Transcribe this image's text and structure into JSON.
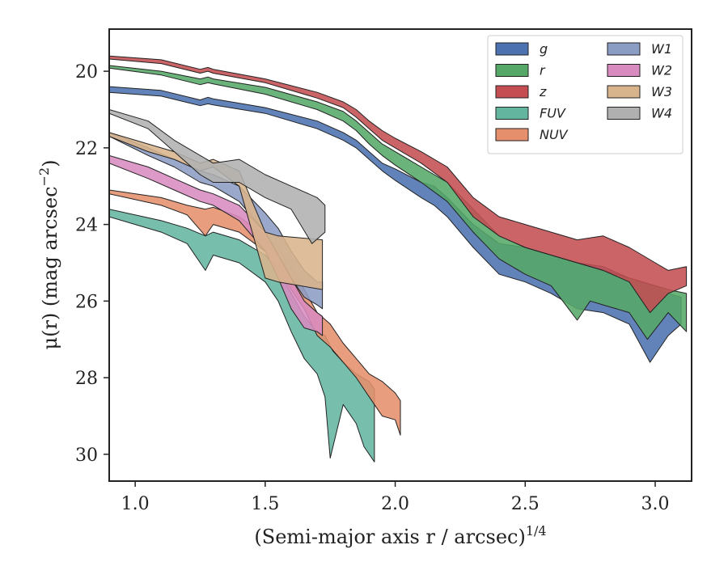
{
  "chart_data": {
    "type": "area",
    "xlabel": "(Semi-major axis r / arcsec)",
    "xlabel_superscript": "1/4",
    "ylabel": "μ(r) (mag arcsec",
    "ylabel_superscript": "−2",
    "ylabel_tail": ")",
    "xlim": [
      0.9,
      3.14
    ],
    "ylim": [
      30.7,
      18.9
    ],
    "y_inverted": true,
    "x_ticks": [
      1.0,
      1.5,
      2.0,
      2.5,
      3.0
    ],
    "x_tick_labels": [
      "1.0",
      "1.5",
      "2.0",
      "2.5",
      "3.0"
    ],
    "y_ticks": [
      20,
      22,
      24,
      26,
      28,
      30
    ],
    "y_tick_labels": [
      "20",
      "22",
      "24",
      "26",
      "28",
      "30"
    ],
    "grid": false,
    "legend_position": "top-right",
    "legend_columns": 2,
    "series": [
      {
        "name": "g",
        "color": "#4c72b0",
        "upper": [
          [
            0.9,
            20.4
          ],
          [
            1.1,
            20.5
          ],
          [
            1.25,
            20.75
          ],
          [
            1.28,
            20.68
          ],
          [
            1.3,
            20.72
          ],
          [
            1.5,
            20.95
          ],
          [
            1.7,
            21.3
          ],
          [
            1.8,
            21.6
          ],
          [
            1.85,
            21.8
          ],
          [
            1.9,
            22.1
          ],
          [
            1.95,
            22.4
          ],
          [
            2.0,
            22.55
          ],
          [
            2.1,
            22.9
          ],
          [
            2.15,
            23.0
          ],
          [
            2.2,
            23.3
          ],
          [
            2.3,
            24.0
          ],
          [
            2.4,
            24.5
          ],
          [
            2.5,
            24.6
          ],
          [
            2.6,
            24.8
          ],
          [
            2.7,
            25.0
          ],
          [
            2.8,
            25.1
          ],
          [
            2.9,
            25.4
          ],
          [
            3.0,
            25.6
          ],
          [
            3.05,
            25.8
          ],
          [
            3.1,
            25.9
          ]
        ],
        "lower": [
          [
            0.9,
            20.55
          ],
          [
            1.1,
            20.65
          ],
          [
            1.25,
            20.9
          ],
          [
            1.28,
            20.85
          ],
          [
            1.3,
            20.88
          ],
          [
            1.5,
            21.1
          ],
          [
            1.7,
            21.5
          ],
          [
            1.8,
            21.8
          ],
          [
            1.85,
            22.0
          ],
          [
            1.9,
            22.3
          ],
          [
            1.95,
            22.6
          ],
          [
            2.0,
            22.85
          ],
          [
            2.1,
            23.3
          ],
          [
            2.15,
            23.5
          ],
          [
            2.2,
            23.8
          ],
          [
            2.3,
            24.6
          ],
          [
            2.4,
            25.3
          ],
          [
            2.5,
            25.5
          ],
          [
            2.6,
            25.8
          ],
          [
            2.65,
            26.0
          ],
          [
            2.7,
            26.2
          ],
          [
            2.8,
            26.3
          ],
          [
            2.9,
            26.6
          ],
          [
            2.98,
            27.6
          ],
          [
            3.05,
            26.9
          ],
          [
            3.1,
            26.6
          ]
        ]
      },
      {
        "name": "r",
        "color": "#55a868",
        "upper": [
          [
            0.9,
            19.85
          ],
          [
            1.1,
            20.0
          ],
          [
            1.25,
            20.2
          ],
          [
            1.28,
            20.15
          ],
          [
            1.3,
            20.2
          ],
          [
            1.5,
            20.42
          ],
          [
            1.7,
            20.8
          ],
          [
            1.8,
            21.05
          ],
          [
            1.85,
            21.3
          ],
          [
            1.9,
            21.6
          ],
          [
            1.95,
            21.9
          ],
          [
            2.0,
            22.1
          ],
          [
            2.1,
            22.5
          ],
          [
            2.2,
            22.9
          ],
          [
            2.3,
            23.6
          ],
          [
            2.4,
            24.3
          ],
          [
            2.5,
            24.6
          ],
          [
            2.6,
            24.8
          ],
          [
            2.7,
            25.0
          ],
          [
            2.8,
            25.2
          ],
          [
            2.9,
            25.4
          ],
          [
            3.0,
            25.6
          ],
          [
            3.05,
            25.7
          ],
          [
            3.12,
            25.8
          ]
        ],
        "lower": [
          [
            0.9,
            19.92
          ],
          [
            1.1,
            20.1
          ],
          [
            1.25,
            20.35
          ],
          [
            1.28,
            20.3
          ],
          [
            1.3,
            20.33
          ],
          [
            1.5,
            20.6
          ],
          [
            1.7,
            21.0
          ],
          [
            1.8,
            21.3
          ],
          [
            1.85,
            21.55
          ],
          [
            1.9,
            21.9
          ],
          [
            1.95,
            22.2
          ],
          [
            2.0,
            22.45
          ],
          [
            2.1,
            22.9
          ],
          [
            2.2,
            23.4
          ],
          [
            2.3,
            24.2
          ],
          [
            2.4,
            24.9
          ],
          [
            2.5,
            25.3
          ],
          [
            2.6,
            25.6
          ],
          [
            2.7,
            26.5
          ],
          [
            2.75,
            26.0
          ],
          [
            2.8,
            26.1
          ],
          [
            2.9,
            26.3
          ],
          [
            2.97,
            27.0
          ],
          [
            3.05,
            26.3
          ],
          [
            3.12,
            26.8
          ]
        ]
      },
      {
        "name": "z",
        "color": "#c44e52",
        "upper": [
          [
            0.9,
            19.6
          ],
          [
            1.1,
            19.7
          ],
          [
            1.25,
            19.95
          ],
          [
            1.28,
            19.9
          ],
          [
            1.3,
            19.95
          ],
          [
            1.5,
            20.2
          ],
          [
            1.7,
            20.55
          ],
          [
            1.8,
            20.8
          ],
          [
            1.85,
            21.0
          ],
          [
            1.9,
            21.3
          ],
          [
            1.95,
            21.55
          ],
          [
            2.0,
            21.75
          ],
          [
            2.1,
            22.1
          ],
          [
            2.2,
            22.5
          ],
          [
            2.3,
            23.3
          ],
          [
            2.4,
            23.8
          ],
          [
            2.5,
            24.0
          ],
          [
            2.6,
            24.2
          ],
          [
            2.7,
            24.4
          ],
          [
            2.8,
            24.3
          ],
          [
            2.9,
            24.6
          ],
          [
            3.0,
            25.0
          ],
          [
            3.05,
            25.2
          ],
          [
            3.12,
            25.1
          ]
        ],
        "lower": [
          [
            0.9,
            19.68
          ],
          [
            1.1,
            19.8
          ],
          [
            1.25,
            20.05
          ],
          [
            1.28,
            20.0
          ],
          [
            1.3,
            20.05
          ],
          [
            1.5,
            20.3
          ],
          [
            1.7,
            20.7
          ],
          [
            1.8,
            20.95
          ],
          [
            1.85,
            21.2
          ],
          [
            1.9,
            21.5
          ],
          [
            1.95,
            21.8
          ],
          [
            2.0,
            22.0
          ],
          [
            2.1,
            22.4
          ],
          [
            2.2,
            22.9
          ],
          [
            2.3,
            23.8
          ],
          [
            2.4,
            24.3
          ],
          [
            2.5,
            24.6
          ],
          [
            2.6,
            24.8
          ],
          [
            2.7,
            25.0
          ],
          [
            2.8,
            25.2
          ],
          [
            2.9,
            25.5
          ],
          [
            2.98,
            26.3
          ],
          [
            3.05,
            25.8
          ],
          [
            3.12,
            25.6
          ]
        ]
      },
      {
        "name": "FUV",
        "color": "#64b5a0",
        "upper": [
          [
            0.9,
            23.6
          ],
          [
            1.1,
            23.9
          ],
          [
            1.2,
            24.1
          ],
          [
            1.27,
            24.3
          ],
          [
            1.3,
            24.2
          ],
          [
            1.4,
            24.4
          ],
          [
            1.5,
            24.8
          ],
          [
            1.55,
            25.2
          ],
          [
            1.6,
            25.8
          ],
          [
            1.65,
            26.4
          ],
          [
            1.7,
            26.8
          ],
          [
            1.73,
            26.9
          ],
          [
            1.76,
            27.3
          ],
          [
            1.8,
            27.6
          ],
          [
            1.85,
            27.9
          ],
          [
            1.9,
            28.1
          ],
          [
            1.92,
            28.3
          ]
        ],
        "lower": [
          [
            0.9,
            23.8
          ],
          [
            1.1,
            24.2
          ],
          [
            1.2,
            24.5
          ],
          [
            1.27,
            25.2
          ],
          [
            1.3,
            24.8
          ],
          [
            1.4,
            25.0
          ],
          [
            1.5,
            25.5
          ],
          [
            1.55,
            26.0
          ],
          [
            1.6,
            26.8
          ],
          [
            1.65,
            27.5
          ],
          [
            1.7,
            27.9
          ],
          [
            1.73,
            28.5
          ],
          [
            1.75,
            30.1
          ],
          [
            1.8,
            28.7
          ],
          [
            1.85,
            29.2
          ],
          [
            1.88,
            29.8
          ],
          [
            1.92,
            30.2
          ]
        ]
      },
      {
        "name": "NUV",
        "color": "#e58f6c",
        "upper": [
          [
            0.9,
            23.1
          ],
          [
            1.1,
            23.3
          ],
          [
            1.2,
            23.5
          ],
          [
            1.27,
            23.6
          ],
          [
            1.3,
            23.55
          ],
          [
            1.4,
            23.8
          ],
          [
            1.5,
            24.3
          ],
          [
            1.55,
            24.6
          ],
          [
            1.6,
            25.1
          ],
          [
            1.65,
            25.7
          ],
          [
            1.7,
            26.3
          ],
          [
            1.75,
            26.6
          ],
          [
            1.8,
            27.1
          ],
          [
            1.85,
            27.5
          ],
          [
            1.9,
            27.9
          ],
          [
            1.95,
            28.1
          ],
          [
            2.0,
            28.4
          ],
          [
            2.02,
            28.6
          ]
        ],
        "lower": [
          [
            0.9,
            23.2
          ],
          [
            1.1,
            23.5
          ],
          [
            1.2,
            23.75
          ],
          [
            1.27,
            24.3
          ],
          [
            1.3,
            24.0
          ],
          [
            1.4,
            24.2
          ],
          [
            1.5,
            24.7
          ],
          [
            1.55,
            25.2
          ],
          [
            1.6,
            25.7
          ],
          [
            1.65,
            26.2
          ],
          [
            1.7,
            26.9
          ],
          [
            1.75,
            27.2
          ],
          [
            1.8,
            27.6
          ],
          [
            1.85,
            28.0
          ],
          [
            1.9,
            28.5
          ],
          [
            1.95,
            29.0
          ],
          [
            2.0,
            29.1
          ],
          [
            2.02,
            29.5
          ]
        ]
      },
      {
        "name": "W1",
        "color": "#8c9dc4",
        "upper": [
          [
            0.9,
            21.6
          ],
          [
            1.05,
            22.0
          ],
          [
            1.15,
            22.3
          ],
          [
            1.25,
            22.6
          ],
          [
            1.3,
            22.7
          ],
          [
            1.4,
            23.0
          ],
          [
            1.5,
            23.7
          ],
          [
            1.55,
            24.1
          ],
          [
            1.6,
            24.7
          ],
          [
            1.65,
            25.2
          ],
          [
            1.7,
            25.5
          ],
          [
            1.72,
            25.5
          ]
        ],
        "lower": [
          [
            0.9,
            21.7
          ],
          [
            1.05,
            22.2
          ],
          [
            1.15,
            22.5
          ],
          [
            1.25,
            22.9
          ],
          [
            1.3,
            23.0
          ],
          [
            1.4,
            23.4
          ],
          [
            1.5,
            24.2
          ],
          [
            1.55,
            24.8
          ],
          [
            1.6,
            25.4
          ],
          [
            1.65,
            25.9
          ],
          [
            1.7,
            26.1
          ],
          [
            1.72,
            26.2
          ]
        ]
      },
      {
        "name": "W2",
        "color": "#d88bbf",
        "upper": [
          [
            0.9,
            22.2
          ],
          [
            1.05,
            22.5
          ],
          [
            1.15,
            22.8
          ],
          [
            1.25,
            23.1
          ],
          [
            1.3,
            23.2
          ],
          [
            1.4,
            23.5
          ],
          [
            1.5,
            24.2
          ],
          [
            1.55,
            24.8
          ],
          [
            1.6,
            25.4
          ],
          [
            1.65,
            26.0
          ],
          [
            1.7,
            26.3
          ],
          [
            1.72,
            26.4
          ]
        ],
        "lower": [
          [
            0.9,
            22.4
          ],
          [
            1.05,
            22.8
          ],
          [
            1.15,
            23.1
          ],
          [
            1.25,
            23.4
          ],
          [
            1.3,
            23.5
          ],
          [
            1.4,
            23.9
          ],
          [
            1.5,
            24.7
          ],
          [
            1.55,
            25.4
          ],
          [
            1.6,
            26.2
          ],
          [
            1.65,
            26.7
          ],
          [
            1.7,
            26.8
          ],
          [
            1.72,
            26.9
          ]
        ]
      },
      {
        "name": "W3",
        "color": "#d8b48c",
        "upper": [
          [
            0.9,
            21.6
          ],
          [
            1.05,
            21.9
          ],
          [
            1.15,
            22.1
          ],
          [
            1.25,
            22.4
          ],
          [
            1.3,
            22.3
          ],
          [
            1.4,
            22.6
          ],
          [
            1.5,
            24.2
          ],
          [
            1.55,
            24.3
          ],
          [
            1.72,
            24.4
          ]
        ],
        "lower": [
          [
            0.9,
            21.7
          ],
          [
            1.05,
            22.1
          ],
          [
            1.15,
            22.3
          ],
          [
            1.25,
            22.6
          ],
          [
            1.3,
            22.5
          ],
          [
            1.4,
            23.0
          ],
          [
            1.5,
            25.4
          ],
          [
            1.55,
            25.5
          ],
          [
            1.72,
            25.7
          ]
        ]
      },
      {
        "name": "W4",
        "color": "#b0b0b0",
        "upper": [
          [
            0.9,
            21.0
          ],
          [
            1.05,
            21.3
          ],
          [
            1.15,
            21.8
          ],
          [
            1.25,
            22.2
          ],
          [
            1.3,
            22.4
          ],
          [
            1.4,
            22.3
          ],
          [
            1.5,
            22.7
          ],
          [
            1.6,
            23.0
          ],
          [
            1.7,
            23.3
          ],
          [
            1.73,
            23.5
          ]
        ],
        "lower": [
          [
            0.9,
            21.1
          ],
          [
            1.05,
            21.5
          ],
          [
            1.15,
            22.1
          ],
          [
            1.25,
            22.7
          ],
          [
            1.3,
            22.9
          ],
          [
            1.4,
            22.9
          ],
          [
            1.5,
            23.3
          ],
          [
            1.6,
            23.6
          ],
          [
            1.68,
            24.5
          ],
          [
            1.73,
            24.2
          ]
        ]
      }
    ]
  }
}
